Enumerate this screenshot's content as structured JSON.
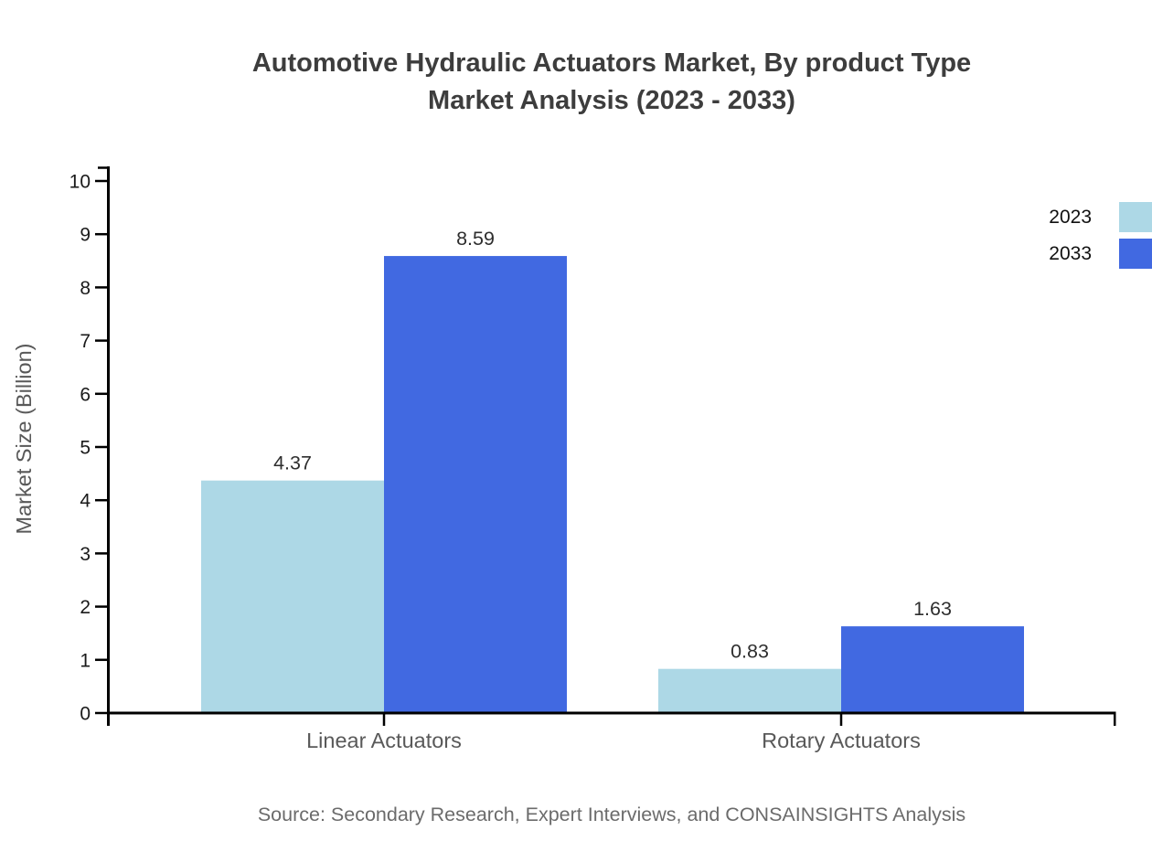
{
  "title_lines": [
    "Automotive Hydraulic Actuators Market, By product Type",
    "Market Analysis (2023 - 2033)"
  ],
  "source_note": "Source: Secondary Research, Expert Interviews, and CONSAINSIGHTS Analysis",
  "chart_data": {
    "type": "bar",
    "categories": [
      "Linear Actuators",
      "Rotary Actuators"
    ],
    "series": [
      {
        "name": "2023",
        "color": "#ADD8E6",
        "values": [
          4.37,
          0.83
        ]
      },
      {
        "name": "2033",
        "color": "#4169E1",
        "values": [
          8.59,
          1.63
        ]
      }
    ],
    "title": "Automotive Hydraulic Actuators Market, By product Type Market Analysis (2023 - 2033)",
    "xlabel": "",
    "ylabel": "Market Size (Billion)",
    "ylim": [
      0,
      10
    ],
    "yticks": [
      0,
      1,
      2,
      3,
      4,
      5,
      6,
      7,
      8,
      9,
      10
    ],
    "grid": false,
    "legend_position": "top-right",
    "value_labels": true
  }
}
